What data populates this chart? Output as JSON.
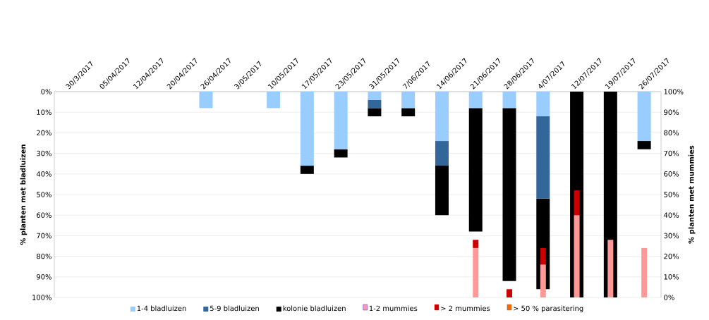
{
  "chart_data": {
    "type": "bar",
    "stacked": true,
    "ylabel": "% planten met bladluizen",
    "y2label": "% planten met mummies",
    "categories": [
      "30/3/2017",
      "05/04/2017",
      "12/04/2017",
      "20/04/2017",
      "26/04/2017",
      "3/05/2017",
      "10/05/2017",
      "17/05/2017",
      "23/05/2017",
      "31/05/2017",
      "7/06/2017",
      "14/06/2017",
      "21/06/2017",
      "28/06/2017",
      "4/07/2017",
      "12/07/2017",
      "19/07/2017",
      "26/07/2017"
    ],
    "series": [
      {
        "name": "1-4 bladluizen",
        "color": "#99ccff",
        "values": [
          0,
          0,
          0,
          0,
          8,
          0,
          8,
          36,
          28,
          4,
          8,
          24,
          8,
          8,
          12,
          0,
          0,
          24
        ]
      },
      {
        "name": "5-9 bladluizen",
        "color": "#336699",
        "values": [
          0,
          0,
          0,
          0,
          0,
          0,
          0,
          0,
          0,
          4,
          0,
          12,
          0,
          0,
          40,
          0,
          0,
          0
        ]
      },
      {
        "name": "kolonie bladluizen",
        "color": "#000000",
        "values": [
          0,
          0,
          0,
          0,
          0,
          0,
          0,
          4,
          4,
          4,
          4,
          24,
          60,
          84,
          44,
          100,
          100,
          4
        ]
      },
      {
        "name": "1-2 mummies",
        "color": "#ff9999",
        "axis": "y2",
        "values": [
          0,
          0,
          0,
          0,
          0,
          0,
          0,
          0,
          0,
          0,
          0,
          0,
          24,
          0,
          16,
          40,
          28,
          24
        ]
      },
      {
        "name": "> 2 mummies",
        "color": "#cc0000",
        "axis": "y2",
        "values": [
          0,
          0,
          0,
          0,
          0,
          0,
          0,
          0,
          0,
          0,
          0,
          0,
          4,
          4,
          8,
          12,
          0,
          0
        ]
      },
      {
        "name": "> 50 % parasitering",
        "color": "#ff6600",
        "axis": "y2",
        "values": [
          0,
          0,
          0,
          0,
          0,
          0,
          0,
          0,
          0,
          0,
          0,
          0,
          0,
          0,
          0,
          0,
          0,
          0
        ]
      }
    ],
    "ylim": [
      100,
      0
    ],
    "yticks": [
      {
        "value": 0,
        "label": "0%"
      },
      {
        "value": 10,
        "label": "10%"
      },
      {
        "value": 20,
        "label": "20%"
      },
      {
        "value": 30,
        "label": "30%"
      },
      {
        "value": 40,
        "label": "40%"
      },
      {
        "value": 50,
        "label": "50%"
      },
      {
        "value": 60,
        "label": "60%"
      },
      {
        "value": 70,
        "label": "70%"
      },
      {
        "value": 80,
        "label": "80%"
      },
      {
        "value": 90,
        "label": "90%"
      },
      {
        "value": 100,
        "label": "100%"
      }
    ],
    "y2lim": [
      0,
      100
    ],
    "y2ticks": [
      {
        "value": 0,
        "label": "0%"
      },
      {
        "value": 10,
        "label": "10%"
      },
      {
        "value": 20,
        "label": "20%"
      },
      {
        "value": 30,
        "label": "30%"
      },
      {
        "value": 40,
        "label": "40%"
      },
      {
        "value": 50,
        "label": "50%"
      },
      {
        "value": 60,
        "label": "60%"
      },
      {
        "value": 70,
        "label": "70%"
      },
      {
        "value": 80,
        "label": "80%"
      },
      {
        "value": 90,
        "label": "90%"
      },
      {
        "value": 100,
        "label": "100%"
      }
    ],
    "grid": "y",
    "legend": "bottom"
  }
}
